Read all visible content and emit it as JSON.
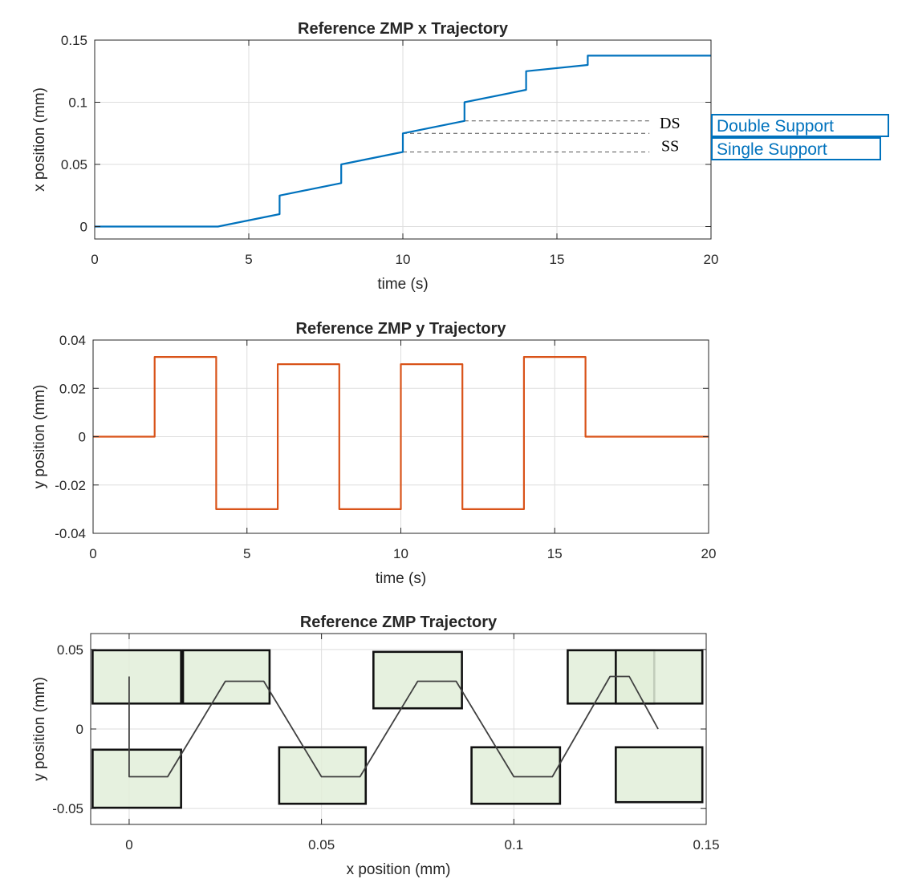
{
  "chart_data": [
    {
      "type": "line",
      "title": "Reference ZMP x Trajectory",
      "xlabel": "time (s)",
      "ylabel": "x position (mm)",
      "xlim": [
        0,
        20
      ],
      "ylim": [
        -0.01,
        0.15
      ],
      "xticks": [
        0,
        5,
        10,
        15,
        20
      ],
      "yticks": [
        0,
        0.05,
        0.1,
        0.15
      ],
      "xtick_labels": [
        "0",
        "5",
        "10",
        "15",
        "20"
      ],
      "ytick_labels": [
        "0",
        "0.05",
        "0.1",
        "0.15"
      ],
      "grid": true,
      "color": "#0072BD",
      "x": [
        0,
        4,
        6,
        6,
        8,
        8,
        10,
        10,
        12,
        12,
        14,
        14,
        16,
        16,
        20
      ],
      "y": [
        0,
        0,
        0.01,
        0.025,
        0.035,
        0.05,
        0.06,
        0.075,
        0.085,
        0.1,
        0.11,
        0.125,
        0.13,
        0.1375,
        0.1375
      ],
      "annotations": [
        {
          "label": "DS",
          "x0": 12,
          "x1": 18,
          "y": 0.085
        },
        {
          "label": "",
          "x0": 10,
          "x1": 18,
          "y": 0.075
        },
        {
          "label": "SS",
          "x0": 10,
          "x1": 18,
          "y": 0.06
        }
      ],
      "legend": [
        "Double Support",
        "Single Support"
      ]
    },
    {
      "type": "line",
      "title": "Reference ZMP y Trajectory",
      "xlabel": "time (s)",
      "ylabel": "y position (mm)",
      "xlim": [
        0,
        20
      ],
      "ylim": [
        -0.04,
        0.04
      ],
      "xticks": [
        0,
        5,
        10,
        15,
        20
      ],
      "yticks": [
        -0.04,
        -0.02,
        0,
        0.02,
        0.04
      ],
      "xtick_labels": [
        "0",
        "5",
        "10",
        "15",
        "20"
      ],
      "ytick_labels": [
        "-0.04",
        "-0.02",
        "0",
        "0.02",
        "0.04"
      ],
      "grid": true,
      "color": "#D95319",
      "x": [
        0,
        2,
        2,
        4,
        4,
        6,
        6,
        8,
        8,
        10,
        10,
        12,
        12,
        14,
        14,
        16,
        16,
        20
      ],
      "y": [
        0,
        0,
        0.033,
        0.033,
        -0.03,
        -0.03,
        0.03,
        0.03,
        -0.03,
        -0.03,
        0.03,
        0.03,
        -0.03,
        -0.03,
        0.033,
        0.033,
        0,
        0
      ]
    },
    {
      "type": "line",
      "title": "Reference ZMP Trajectory",
      "xlabel": "x position (mm)",
      "ylabel": "y position (mm)",
      "xlim": [
        -0.01,
        0.15
      ],
      "ylim": [
        -0.06,
        0.06
      ],
      "xticks": [
        0,
        0.05,
        0.1,
        0.15
      ],
      "yticks": [
        -0.05,
        0,
        0.05
      ],
      "xtick_labels": [
        "0",
        "0.05",
        "0.1",
        "0.15"
      ],
      "ytick_labels": [
        "-0.05",
        "0",
        "0.05"
      ],
      "grid": true,
      "color": "#404040",
      "footprint_color": "#E2EFD9",
      "x": [
        0,
        0,
        0.01,
        0.025,
        0.035,
        0.05,
        0.06,
        0.075,
        0.085,
        0.1,
        0.11,
        0.125,
        0.13,
        0.1375
      ],
      "y": [
        0.033,
        -0.03,
        -0.03,
        0.03,
        0.03,
        -0.03,
        -0.03,
        0.03,
        0.03,
        -0.03,
        -0.03,
        0.033,
        0.033,
        0
      ],
      "footprints": [
        {
          "x0": -0.0095,
          "x1": 0.0135,
          "y0": 0.016,
          "y1": 0.0495
        },
        {
          "x0": 0.014,
          "x1": 0.0365,
          "y0": 0.016,
          "y1": 0.0495
        },
        {
          "x0": -0.0095,
          "x1": 0.0135,
          "y0": -0.0495,
          "y1": -0.013
        },
        {
          "x0": 0.039,
          "x1": 0.0615,
          "y0": -0.047,
          "y1": -0.0115
        },
        {
          "x0": 0.0635,
          "x1": 0.0865,
          "y0": 0.013,
          "y1": 0.0485
        },
        {
          "x0": 0.089,
          "x1": 0.112,
          "y0": -0.047,
          "y1": -0.0115
        },
        {
          "x0": 0.114,
          "x1": 0.1365,
          "y0": 0.016,
          "y1": 0.0495
        },
        {
          "x0": 0.1265,
          "x1": 0.149,
          "y0": 0.016,
          "y1": 0.0495
        },
        {
          "x0": 0.1265,
          "x1": 0.149,
          "y0": -0.046,
          "y1": -0.0115
        }
      ]
    }
  ]
}
